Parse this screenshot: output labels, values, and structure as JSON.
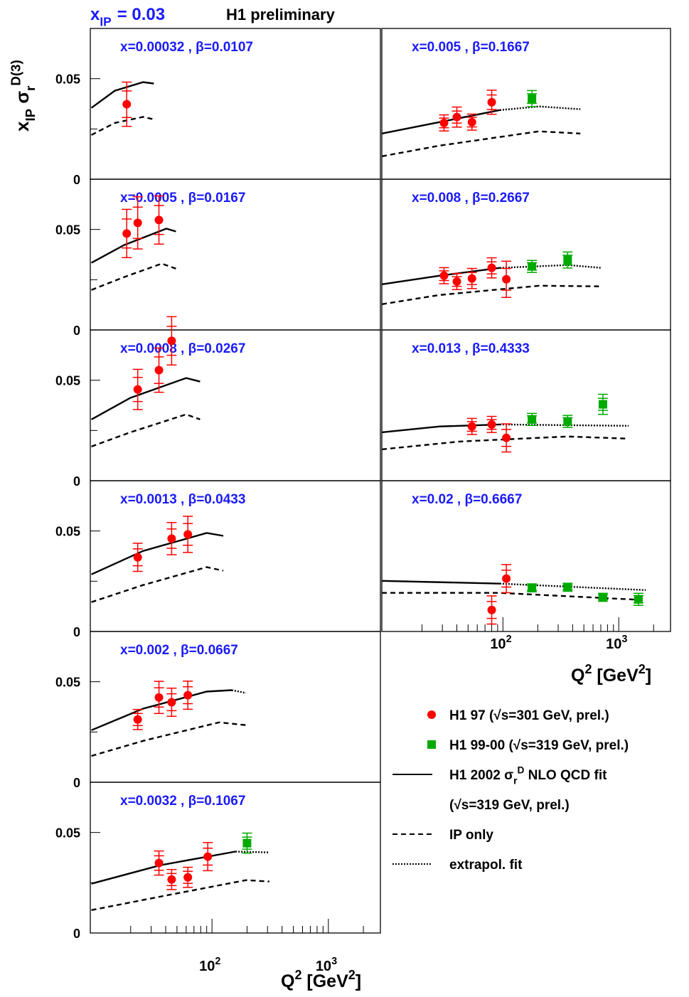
{
  "chart_data": {
    "type": "scatter",
    "title": {
      "symbol": "x",
      "sub": "IP",
      "rest": "= 0.03"
    },
    "subtitle": "H1 preliminary",
    "y_label": {
      "a": "x",
      "a_sub": "IP",
      "b": " σ",
      "b_sub": "r",
      "b_sup": "D(3)"
    },
    "x_label": {
      "a": "Q",
      "a_sup": "2",
      "b": " [GeV",
      "b_sup": "2",
      "c": "]"
    },
    "xlim": [
      9,
      2800
    ],
    "log_x": true,
    "xticks": [
      {
        "value": 100,
        "label": "10",
        "exp": "2"
      },
      {
        "value": 1000,
        "label": "10",
        "exp": "3"
      }
    ],
    "xminorticks": [
      20,
      30,
      40,
      50,
      60,
      70,
      80,
      90,
      200,
      300,
      400,
      500,
      600,
      700,
      800,
      900,
      2000
    ],
    "ylim": [
      0,
      0.075
    ],
    "yticks": [
      0,
      0.05
    ],
    "yminorticks": [
      0.025
    ],
    "series": [
      {
        "name": "H1 97 (√s=301 GeV, prel.)",
        "color": "#ff0000",
        "marker": "circle"
      },
      {
        "name": "H1 99-00 (√s=319 GeV, prel.)",
        "color": "#00aa00",
        "marker": "square"
      },
      {
        "name": "H1 2002 σ",
        "name_sub": "r",
        "name_sup": "D",
        "name_post": " NLO QCD fit",
        "name_line2": "(√s=319 GeV, prel.)",
        "color": "#000000",
        "style": "solid"
      },
      {
        "name": "IP only",
        "color": "#000000",
        "style": "dashed"
      },
      {
        "name": "extrapol. fit",
        "color": "#000000",
        "style": "dotted"
      }
    ],
    "panels": [
      {
        "label": "x=0.00032 , β=0.0107",
        "data": [
          {
            "x": [
              18.5
            ],
            "y": [
              0.0373
            ],
            "err": [
              0.011
            ]
          },
          null,
          {
            "x": [
              9.2,
              14.6,
              25.6,
              31.6
            ],
            "y": [
              0.0355,
              0.044,
              0.0483,
              0.0476
            ]
          },
          {
            "x": [
              9.2,
              14.6,
              25.6,
              31.6
            ],
            "y": [
              0.022,
              0.028,
              0.031,
              0.0298
            ]
          },
          null
        ]
      },
      {
        "label": "x=0.0005 , β=0.0167",
        "data": [
          {
            "x": [
              18.5,
              23,
              35
            ],
            "y": [
              0.048,
              0.0533,
              0.0547
            ],
            "err": [
              0.012,
              0.013,
              0.012
            ]
          },
          null,
          {
            "x": [
              9.2,
              17.5,
              40.5,
              49
            ],
            "y": [
              0.0334,
              0.0422,
              0.0504,
              0.049
            ]
          },
          {
            "x": [
              9.2,
              17.5,
              37,
              49
            ],
            "y": [
              0.0199,
              0.0263,
              0.033,
              0.0305
            ]
          },
          null
        ]
      },
      {
        "label": "x=0.0008 , β=0.0267",
        "data": [
          {
            "x": [
              23,
              35,
              45
            ],
            "y": [
              0.0454,
              0.055,
              0.0696
            ],
            "err": [
              0.01,
              0.011,
              0.012
            ]
          },
          null,
          {
            "x": [
              9.2,
              19.9,
              60,
              79
            ],
            "y": [
              0.0305,
              0.0412,
              0.0511,
              0.0493
            ]
          },
          {
            "x": [
              9.2,
              19.9,
              60,
              79
            ],
            "y": [
              0.017,
              0.0241,
              0.033,
              0.0305
            ]
          },
          null
        ]
      },
      {
        "label": "x=0.0013 , β=0.0433",
        "data": [
          {
            "x": [
              23,
              45,
              62
            ],
            "y": [
              0.0369,
              0.0462,
              0.0483
            ],
            "err": [
              0.007,
              0.008,
              0.009
            ]
          },
          null,
          {
            "x": [
              9.2,
              25.6,
              90,
              125
            ],
            "y": [
              0.0284,
              0.0401,
              0.049,
              0.0476
            ]
          },
          {
            "x": [
              9.2,
              25.6,
              90,
              125
            ],
            "y": [
              0.0146,
              0.0231,
              0.032,
              0.0302
            ]
          },
          null
        ]
      },
      {
        "label": "x=0.002 , β=0.0667",
        "data": [
          {
            "x": [
              23,
              35,
              45,
              62
            ],
            "y": [
              0.0312,
              0.0422,
              0.0398,
              0.0433
            ],
            "err": [
              0.005,
              0.008,
              0.007,
              0.007
            ]
          },
          null,
          {
            "x": [
              9.2,
              25.6,
              90,
              148
            ],
            "y": [
              0.0259,
              0.0366,
              0.0451,
              0.0458
            ]
          },
          {
            "x": [
              9.2,
              25.6,
              115,
              196
            ],
            "y": [
              0.0131,
              0.0206,
              0.0298,
              0.0284
            ]
          },
          {
            "x": [
              148,
              196
            ],
            "y": [
              0.0458,
              0.0444
            ]
          }
        ]
      },
      {
        "label": "x=0.0032 , β=0.1067",
        "data": [
          {
            "x": [
              35,
              45,
              62,
              92
            ],
            "y": [
              0.0348,
              0.0266,
              0.0277,
              0.038
            ],
            "err": [
              0.006,
              0.005,
              0.005,
              0.007
            ]
          },
          {
            "x": [
              200
            ],
            "y": [
              0.0447
            ],
            "err": [
              0.005
            ]
          },
          {
            "x": [
              9.2,
              36,
              159
            ],
            "y": [
              0.0245,
              0.0337,
              0.0405
            ]
          },
          {
            "x": [
              9.2,
              36,
              196,
              311
            ],
            "y": [
              0.0114,
              0.0181,
              0.0263,
              0.0256
            ]
          },
          {
            "x": [
              159,
              311
            ],
            "y": [
              0.0405,
              0.0401
            ]
          }
        ]
      },
      {
        "label": "x=0.005 , β=0.1667",
        "data": [
          {
            "x": [
              31,
              40,
              54,
              80
            ],
            "y": [
              0.028,
              0.0309,
              0.0284,
              0.0383
            ],
            "err": [
              0.004,
              0.005,
              0.004,
              0.006
            ]
          },
          {
            "x": [
              178
            ],
            "y": [
              0.0401
            ],
            "err": [
              0.004
            ]
          },
          {
            "x": [
              9,
              28.4,
              94
            ],
            "y": [
              0.0227,
              0.0284,
              0.0344
            ]
          },
          {
            "x": [
              9,
              28.4,
              205,
              466
            ],
            "y": [
              0.0114,
              0.0167,
              0.0238,
              0.0227
            ]
          },
          {
            "x": [
              94,
              205,
              466
            ],
            "y": [
              0.0344,
              0.0362,
              0.0348
            ]
          }
        ]
      },
      {
        "label": "x=0.008 , β=0.2667",
        "data": [
          {
            "x": [
              31,
              40,
              54,
              80,
              107
            ],
            "y": [
              0.027,
              0.0241,
              0.0256,
              0.0309,
              0.0252
            ],
            "err": [
              0.004,
              0.004,
              0.005,
              0.005,
              0.009
            ]
          },
          {
            "x": [
              178,
              362
            ],
            "y": [
              0.0316,
              0.0348
            ],
            "err": [
              0.003,
              0.004
            ]
          },
          {
            "x": [
              9,
              28.4,
              94
            ],
            "y": [
              0.0227,
              0.027,
              0.0309
            ]
          },
          {
            "x": [
              9,
              28.4,
              205,
              712
            ],
            "y": [
              0.0128,
              0.0174,
              0.022,
              0.0217
            ]
          },
          {
            "x": [
              94,
              362,
              712
            ],
            "y": [
              0.0309,
              0.0323,
              0.0309
            ]
          }
        ]
      },
      {
        "label": "x=0.013 , β=0.4333",
        "data": [
          {
            "x": [
              54,
              80,
              107
            ],
            "y": [
              0.027,
              0.028,
              0.0213
            ],
            "err": [
              0.004,
              0.004,
              0.007
            ]
          },
          {
            "x": [
              178,
              362,
              730
            ],
            "y": [
              0.0305,
              0.0295,
              0.038
            ],
            "err": [
              0.003,
              0.003,
              0.005
            ]
          },
          {
            "x": [
              9,
              28.4,
              94
            ],
            "y": [
              0.0241,
              0.027,
              0.028
            ]
          },
          {
            "x": [
              9,
              42,
              362,
              1218
            ],
            "y": [
              0.0156,
              0.0195,
              0.022,
              0.0209
            ]
          },
          {
            "x": [
              94,
              1218
            ],
            "y": [
              0.028,
              0.0273
            ]
          }
        ]
      },
      {
        "label": "x=0.02 , β=0.6667",
        "data": [
          {
            "x": [
              80,
              107
            ],
            "y": [
              0.0107,
              0.0263
            ],
            "err": [
              0.007,
              0.007
            ]
          },
          {
            "x": [
              178,
              362,
              730,
              1480
            ],
            "y": [
              0.0217,
              0.022,
              0.017,
              0.016
            ],
            "err": [
              0.002,
              0.002,
              0.002,
              0.003
            ]
          },
          {
            "x": [
              9,
              94
            ],
            "y": [
              0.0252,
              0.0238
            ]
          },
          {
            "x": [
              9,
              94,
              1711
            ],
            "y": [
              0.0192,
              0.0192,
              0.0156
            ]
          },
          {
            "x": [
              94,
              1711
            ],
            "y": [
              0.0238,
              0.0206
            ]
          }
        ]
      }
    ]
  }
}
